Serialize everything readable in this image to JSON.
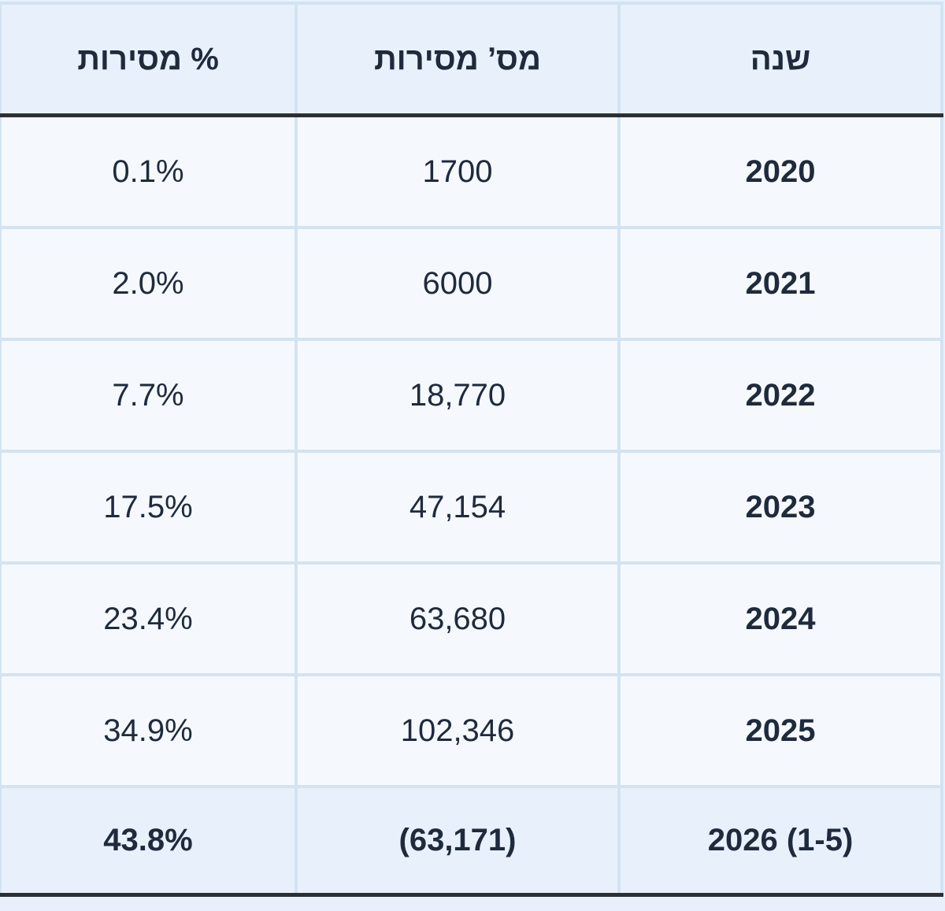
{
  "table": {
    "header": [
      "שנה",
      "מס’ מסירות",
      "% מסירות"
    ],
    "rows": [
      [
        "2020",
        "1700",
        "0.1%"
      ],
      [
        "2021",
        "6000",
        "2.0%"
      ],
      [
        "2022",
        "18,770",
        "7.7%"
      ],
      [
        "2023",
        "47,154",
        "17.5%"
      ],
      [
        "2024",
        "63,680",
        "23.4%"
      ],
      [
        "2025",
        "102,346",
        "34.9%"
      ],
      [
        "2026 (1-5)",
        "(63,171)",
        "43.8%"
      ]
    ]
  }
}
